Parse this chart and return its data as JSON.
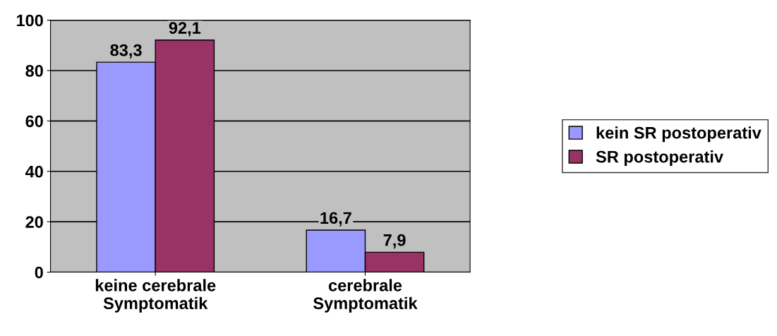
{
  "chart_data": {
    "type": "bar",
    "categories": [
      "keine cerebrale\nSymptomatik",
      "cerebrale\nSymptomatik"
    ],
    "series": [
      {
        "name": "kein SR postoperativ",
        "color": "#9999ff",
        "values": [
          83.3,
          16.7
        ],
        "value_labels": [
          "83,3",
          "16,7"
        ]
      },
      {
        "name": "SR postoperativ",
        "color": "#993366",
        "values": [
          92.1,
          7.9
        ],
        "value_labels": [
          "92,1",
          "7,9"
        ]
      }
    ],
    "ylim": [
      0,
      100
    ],
    "yticks": [
      0,
      20,
      40,
      60,
      80,
      100
    ],
    "grid": "y",
    "legend": "right"
  }
}
